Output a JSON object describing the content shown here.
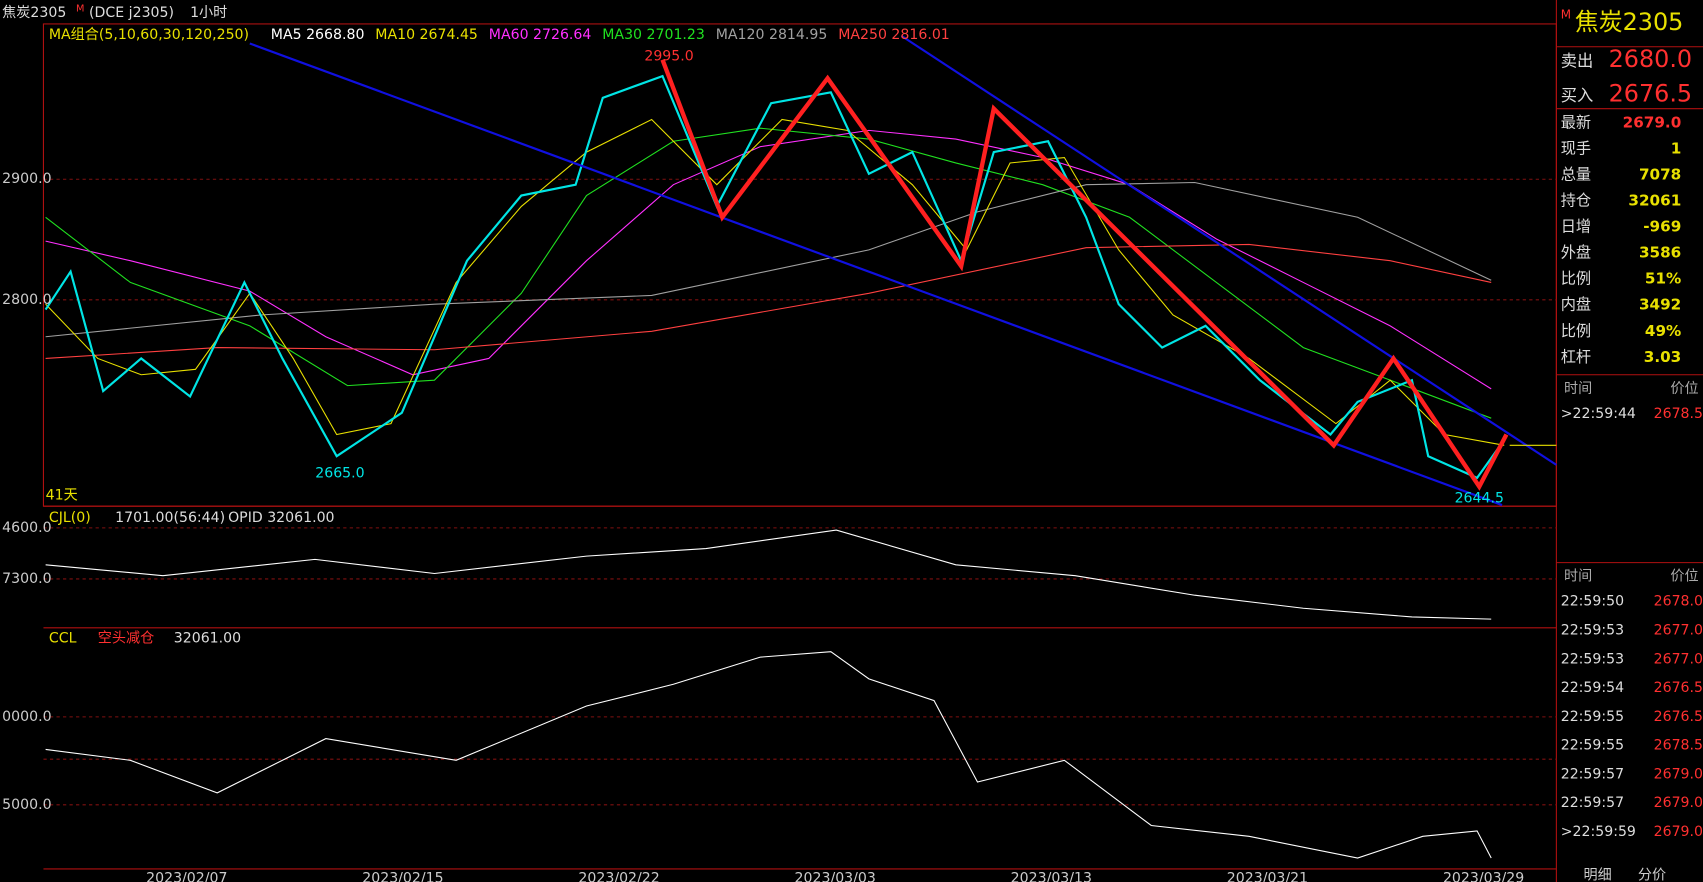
{
  "header": {
    "flag": "M",
    "title": "焦炭2305",
    "code": "(DCE  j2305)",
    "period": "1小时"
  },
  "ma_legend": {
    "label": "MA组合(5,10,60,30,120,250)",
    "items": [
      {
        "text": "MA5 2668.80",
        "color": "#ffffff"
      },
      {
        "text": "MA10 2674.45",
        "color": "#e8e000"
      },
      {
        "text": "MA60 2726.64",
        "color": "#ff30ff"
      },
      {
        "text": "MA30 2701.23",
        "color": "#20e020"
      },
      {
        "text": "MA120 2814.95",
        "color": "#a0a0a0"
      },
      {
        "text": "MA250 2816.01",
        "color": "#ff4040"
      }
    ]
  },
  "price_axis": [
    "2900.0",
    "2800.0"
  ],
  "annotations": {
    "high": "2995.0",
    "low_left": "2665.0",
    "low_right": "2644.5",
    "days": "41天"
  },
  "volume_panel": {
    "label": "CJL(0)",
    "value": "1701.00(56:44)",
    "opid": "OPID 32061.00",
    "axis": [
      "4600.0",
      "7300.0"
    ]
  },
  "oi_panel": {
    "label": "CCL",
    "tag": "空头减仓",
    "value": "32061.00",
    "axis": [
      "0000.0",
      "5000.0"
    ]
  },
  "dates": [
    "2023/02/07",
    "2023/02/15",
    "2023/02/22",
    "2023/03/03",
    "2023/03/13",
    "2023/03/21",
    "2023/03/29"
  ],
  "quote": {
    "flag": "M",
    "symbol": "焦炭2305",
    "sell_label": "卖出",
    "sell": "2680.0",
    "buy_label": "买入",
    "buy": "2676.5",
    "rows": [
      [
        "最新",
        "2679.0"
      ],
      [
        "现手",
        "1"
      ],
      [
        "总量",
        "7078"
      ],
      [
        "持仓",
        "32061"
      ],
      [
        "日增",
        "-969"
      ],
      [
        "外盘",
        "3586"
      ],
      [
        "比例",
        "51%"
      ],
      [
        "内盘",
        "3492"
      ],
      [
        "比例",
        "49%"
      ],
      [
        "杠杆",
        "3.03"
      ]
    ]
  },
  "ticks_top": {
    "headers": [
      "时间",
      "价位"
    ],
    "rows": [
      [
        ">22:59:44",
        "2678.5"
      ]
    ]
  },
  "ticks_bottom": {
    "headers": [
      "时间",
      "价位"
    ],
    "rows": [
      [
        "22:59:50",
        "2678.0"
      ],
      [
        "22:59:53",
        "2677.0"
      ],
      [
        "22:59:53",
        "2677.0"
      ],
      [
        "22:59:54",
        "2676.5"
      ],
      [
        "22:59:55",
        "2676.5"
      ],
      [
        "22:59:55",
        "2678.5"
      ],
      [
        "22:59:57",
        "2679.0"
      ],
      [
        "22:59:57",
        "2679.0"
      ],
      [
        ">22:59:59",
        "2679.0"
      ]
    ]
  },
  "tabs": [
    "明细",
    "分价"
  ]
}
